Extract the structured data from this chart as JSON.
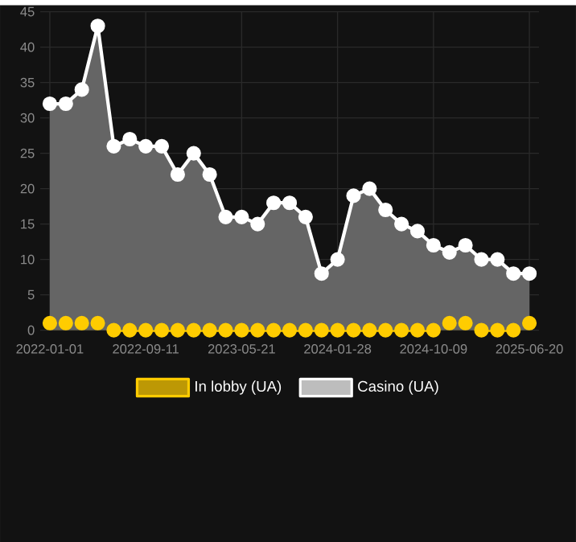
{
  "chart_data": {
    "type": "area",
    "categories": [
      "2022-01-01",
      null,
      null,
      null,
      null,
      null,
      "2022-09-11",
      null,
      null,
      null,
      null,
      null,
      "2023-05-21",
      null,
      null,
      null,
      null,
      null,
      "2024-01-28",
      null,
      null,
      null,
      null,
      null,
      "2024-10-09",
      null,
      null,
      null,
      null,
      null,
      "2025-06-20"
    ],
    "series": [
      {
        "name": "In lobby (UA)",
        "color": "#ffcc00",
        "values": [
          1,
          1,
          1,
          1,
          0,
          0,
          0,
          0,
          0,
          0,
          0,
          0,
          0,
          0,
          0,
          0,
          0,
          0,
          0,
          0,
          0,
          0,
          0,
          0,
          0,
          1,
          1,
          0,
          0,
          0,
          1
        ]
      },
      {
        "name": "Casino (UA)",
        "color": "#ffffff",
        "values": [
          32,
          32,
          34,
          43,
          26,
          27,
          26,
          26,
          22,
          25,
          22,
          16,
          16,
          15,
          18,
          18,
          16,
          8,
          10,
          19,
          20,
          17,
          15,
          14,
          12,
          11,
          12,
          10,
          10,
          8,
          8
        ]
      }
    ],
    "ylim": [
      0,
      45
    ],
    "yticks": [
      0,
      5,
      10,
      15,
      20,
      25,
      30,
      35,
      40,
      45
    ],
    "grid": true,
    "legend": "bottom",
    "marker": "circle"
  }
}
